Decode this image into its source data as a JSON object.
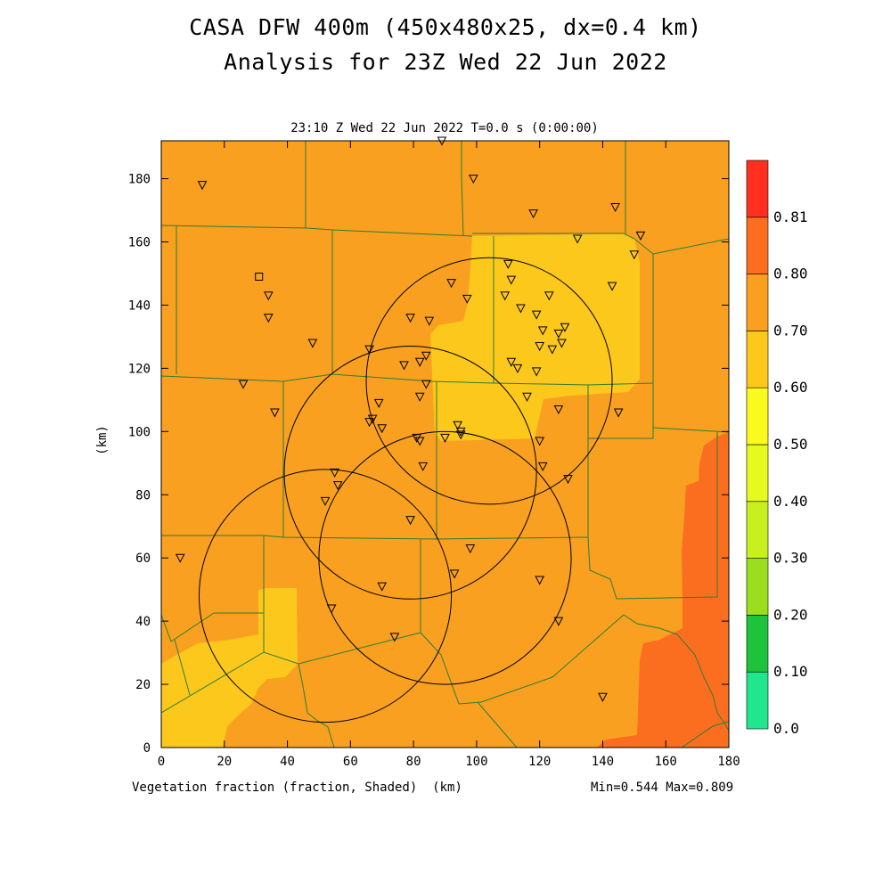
{
  "titles": {
    "line1": "CASA DFW 400m (450x480x25, dx=0.4 km)",
    "line2": "Analysis for 23Z Wed 22 Jun 2022",
    "subtitle": "23:10 Z Wed 22 Jun 2022   T=0.0 s (0:00:00)",
    "field_label": "Vegetation fraction (fraction, Shaded)",
    "x_unit": "(km)",
    "y_unit": "(km)",
    "minmax": "Min=0.544 Max=0.809"
  },
  "axes": {
    "x_ticks": [
      "0",
      "20",
      "40",
      "60",
      "80",
      "100",
      "120",
      "140",
      "160",
      "180"
    ],
    "y_ticks": [
      "0",
      "20",
      "40",
      "60",
      "80",
      "100",
      "120",
      "140",
      "160",
      "180"
    ],
    "x_range": [
      0,
      180
    ],
    "y_range": [
      0,
      192
    ]
  },
  "colorbar": {
    "labels": [
      "0.0",
      "0.10",
      "0.20",
      "0.30",
      "0.40",
      "0.50",
      "0.60",
      "0.70",
      "0.80",
      "0.81"
    ],
    "colors": [
      "#20e68c",
      "#1ec23c",
      "#9ade1e",
      "#c8f01e",
      "#e6fa1e",
      "#fafa1e",
      "#fcc81c",
      "#f9a020",
      "#fb6e20",
      "#ff3020"
    ]
  },
  "map": {
    "colors": {
      "background": "#f9a020",
      "high": "#fb6e20",
      "low": "#fcc81c",
      "county": "#2e7d32",
      "ring": "#000000"
    },
    "radar_rings": [
      {
        "cx": 104,
        "cy": 116,
        "r": 39
      },
      {
        "cx": 79,
        "cy": 87,
        "r": 40
      },
      {
        "cx": 90,
        "cy": 60,
        "r": 40
      },
      {
        "cx": 52,
        "cy": 48,
        "r": 40
      }
    ],
    "stations": [
      [
        13,
        178
      ],
      [
        89,
        192
      ],
      [
        99,
        180
      ],
      [
        118,
        169
      ],
      [
        144,
        171
      ],
      [
        152,
        162
      ],
      [
        150,
        156
      ],
      [
        132,
        161
      ],
      [
        34,
        143
      ],
      [
        34,
        136
      ],
      [
        48,
        128
      ],
      [
        79,
        136
      ],
      [
        85,
        135
      ],
      [
        92,
        147
      ],
      [
        97,
        142
      ],
      [
        110,
        153
      ],
      [
        111,
        148
      ],
      [
        109,
        143
      ],
      [
        114,
        139
      ],
      [
        119,
        137
      ],
      [
        123,
        143
      ],
      [
        120,
        127
      ],
      [
        126,
        131
      ],
      [
        128,
        133
      ],
      [
        127,
        128
      ],
      [
        124,
        126
      ],
      [
        121,
        132
      ],
      [
        143,
        146
      ],
      [
        66,
        126
      ],
      [
        77,
        121
      ],
      [
        82,
        122
      ],
      [
        84,
        124
      ],
      [
        84,
        115
      ],
      [
        82,
        111
      ],
      [
        69,
        109
      ],
      [
        67,
        104
      ],
      [
        66,
        103
      ],
      [
        70,
        101
      ],
      [
        26,
        115
      ],
      [
        36,
        106
      ],
      [
        111,
        122
      ],
      [
        113,
        120
      ],
      [
        116,
        111
      ],
      [
        119,
        119
      ],
      [
        126,
        107
      ],
      [
        145,
        106
      ],
      [
        94,
        102
      ],
      [
        95,
        100
      ],
      [
        95,
        99
      ],
      [
        90,
        98
      ],
      [
        81,
        98
      ],
      [
        82,
        97
      ],
      [
        120,
        97
      ],
      [
        121,
        89
      ],
      [
        129,
        85
      ],
      [
        55,
        87
      ],
      [
        56,
        83
      ],
      [
        52,
        78
      ],
      [
        83,
        89
      ],
      [
        79,
        72
      ],
      [
        6,
        60
      ],
      [
        98,
        63
      ],
      [
        93,
        55
      ],
      [
        120,
        53
      ],
      [
        70,
        51
      ],
      [
        54,
        44
      ],
      [
        126,
        40
      ],
      [
        74,
        35
      ],
      [
        140,
        16
      ]
    ],
    "square_stations": [
      [
        31,
        149
      ]
    ]
  }
}
